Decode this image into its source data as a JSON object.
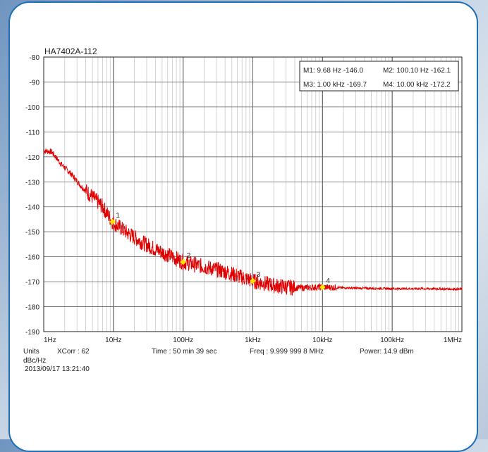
{
  "chart_data": {
    "type": "line",
    "title": "HA7402A-112",
    "y_unit": "dBc/Hz",
    "xscale": "log",
    "xlim": [
      1,
      1000000
    ],
    "ylim": [
      -190,
      -80
    ],
    "y_ticks": [
      "-80",
      "-90",
      "-100",
      "-110",
      "-120",
      "-130",
      "-140",
      "-150",
      "-160",
      "-170",
      "-180",
      "-190"
    ],
    "x_ticks": [
      "1Hz",
      "10Hz",
      "100Hz",
      "1kHz",
      "10kHz",
      "100kHz",
      "1MHz"
    ],
    "grid": true,
    "color": "#e00000",
    "marker_color": "#ffe600",
    "series": [
      {
        "x": [
          1,
          1.3,
          1.8,
          2.5,
          3.5,
          5,
          7,
          9.68,
          15,
          25,
          40,
          70,
          100.1,
          200,
          400,
          1000,
          2000,
          4000,
          10000,
          30000,
          100000,
          300000,
          1000000
        ],
        "values": [
          -117.5,
          -118,
          -123,
          -127,
          -132,
          -136,
          -140,
          -146,
          -150,
          -154,
          -157,
          -160,
          -162.1,
          -164,
          -166,
          -169.7,
          -171.5,
          -172.5,
          -172.2,
          -172.6,
          -172.8,
          -172.8,
          -173
        ]
      }
    ],
    "markers": [
      {
        "label": "1",
        "x": 9.68,
        "y": -146.0
      },
      {
        "label": "2",
        "x": 100.1,
        "y": -162.1
      },
      {
        "label": "3",
        "x": 1000,
        "y": -169.7
      },
      {
        "label": "4",
        "x": 10000,
        "y": -172.2
      }
    ]
  },
  "marker_box": {
    "m1": "M1:  9.68 Hz  -146.0",
    "m2": "M2:  100.10 Hz  -162.1",
    "m3": "M3:  1.00 kHz  -169.7",
    "m4": "M4:  10.00 kHz  -172.2"
  },
  "footer": {
    "units": "Units",
    "unit_value": "dBc/Hz",
    "xcorr": "XCorr : 62",
    "time": "Time : 50 min 39 sec",
    "freq": "Freq : 9.999 999 8 MHz",
    "power": "Power: 14.9 dBm",
    "timestamp": "2013/09/17 13:21:40"
  }
}
